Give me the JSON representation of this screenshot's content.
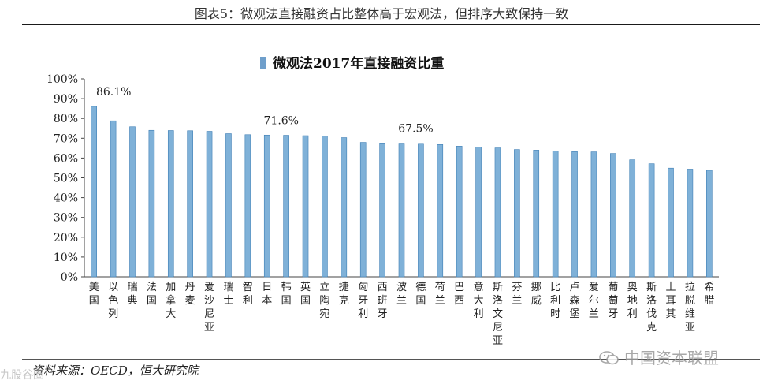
{
  "figure_title": "图表5：微观法直接融资占比整体高于宏观法，但排序大致保持一致",
  "source": "资料来源：OECD，恒大研究院",
  "watermark_right": "中国资本联盟",
  "watermark_left": "九股谷圈",
  "colors": {
    "bar": "#7fb1d8",
    "bar_edge": "#3f7fb5",
    "axis": "#444444",
    "legend": "#6f9fcb"
  },
  "chart_data": {
    "type": "bar",
    "title": "微观法2017年直接融资比重",
    "legend": "微观法2017年直接融资比重",
    "categories": [
      "美国",
      "以色列",
      "瑞典",
      "法国",
      "加拿大",
      "丹麦",
      "爱沙尼亚",
      "瑞士",
      "智利",
      "日本",
      "韩国",
      "英国",
      "立陶宛",
      "捷克",
      "匈牙利",
      "西班牙",
      "波兰",
      "德国",
      "荷兰",
      "巴西",
      "意大利",
      "斯洛文尼亚",
      "芬兰",
      "挪威",
      "比利时",
      "卢森堡",
      "爱尔兰",
      "葡萄牙",
      "奥地利",
      "斯洛伐克",
      "土耳其",
      "拉脱维亚",
      "希腊"
    ],
    "values": [
      86.1,
      78.8,
      75.8,
      74.0,
      73.9,
      73.8,
      73.5,
      72.3,
      71.8,
      71.6,
      71.5,
      71.3,
      71.1,
      70.3,
      67.9,
      67.6,
      67.5,
      67.4,
      66.8,
      66.0,
      65.5,
      65.1,
      64.3,
      64.0,
      63.5,
      63.2,
      63.1,
      62.3,
      59.1,
      57.1,
      54.9,
      54.4,
      53.8
    ],
    "annotations": [
      {
        "index": 0,
        "label": "86.1%"
      },
      {
        "index": 9,
        "label": "71.6%"
      },
      {
        "index": 16,
        "label": "67.5%"
      }
    ],
    "yticks": [
      "0%",
      "10%",
      "20%",
      "30%",
      "40%",
      "50%",
      "60%",
      "70%",
      "80%",
      "90%",
      "100%"
    ],
    "ylim": [
      0,
      100
    ],
    "xlabel": "",
    "ylabel": ""
  }
}
